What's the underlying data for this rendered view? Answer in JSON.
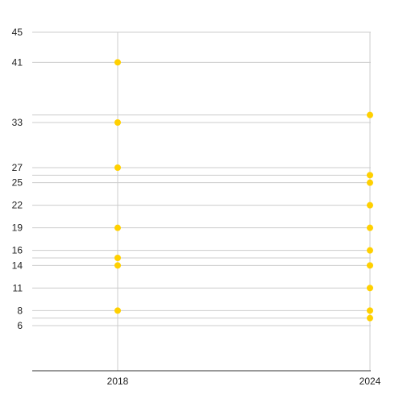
{
  "chart_data": {
    "type": "scatter",
    "title": "",
    "xlabel": "",
    "ylabel": "",
    "ylim": [
      0,
      45
    ],
    "x_categories": [
      "2018",
      "2024"
    ],
    "y_gridlines": [
      6,
      7,
      8,
      11,
      14,
      15,
      16,
      19,
      22,
      25,
      26,
      27,
      33,
      34,
      41,
      45
    ],
    "y_tick_labels": [
      "45",
      "41",
      "33",
      "27",
      "25",
      "22",
      "19",
      "16",
      "14",
      "11",
      "8",
      "6"
    ],
    "grid": true,
    "legend": "none",
    "series": [
      {
        "color": "#FFD000",
        "points": [
          {
            "x": "2018",
            "y": 41
          },
          {
            "x": "2018",
            "y": 33
          },
          {
            "x": "2018",
            "y": 27
          },
          {
            "x": "2018",
            "y": 19
          },
          {
            "x": "2018",
            "y": 15
          },
          {
            "x": "2018",
            "y": 14
          },
          {
            "x": "2018",
            "y": 8
          },
          {
            "x": "2024",
            "y": 34
          },
          {
            "x": "2024",
            "y": 26
          },
          {
            "x": "2024",
            "y": 25
          },
          {
            "x": "2024",
            "y": 22
          },
          {
            "x": "2024",
            "y": 19
          },
          {
            "x": "2024",
            "y": 16
          },
          {
            "x": "2024",
            "y": 14
          },
          {
            "x": "2024",
            "y": 11
          },
          {
            "x": "2024",
            "y": 8
          },
          {
            "x": "2024",
            "y": 7
          }
        ]
      }
    ]
  }
}
